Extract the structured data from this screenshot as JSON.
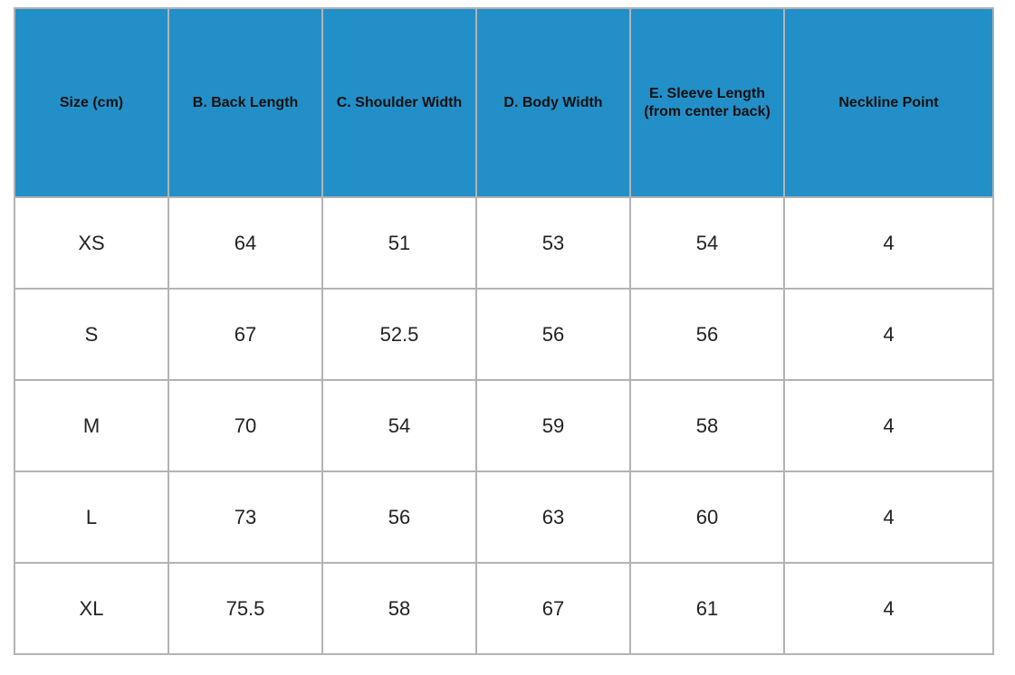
{
  "table": {
    "headers": [
      "Size (cm)",
      "B. Back Length",
      "C. Shoulder Width",
      "D. Body Width",
      "E. Sleeve Length (from center back)",
      "Neckline Point"
    ],
    "rows": [
      [
        "XS",
        "64",
        "51",
        "53",
        "54",
        "4"
      ],
      [
        "S",
        "67",
        "52.5",
        "56",
        "56",
        "4"
      ],
      [
        "M",
        "70",
        "54",
        "59",
        "58",
        "4"
      ],
      [
        "L",
        "73",
        "56",
        "63",
        "60",
        "4"
      ],
      [
        "XL",
        "75.5",
        "58",
        "67",
        "61",
        "4"
      ]
    ],
    "colors": {
      "header_background": "#238fc8",
      "border": "#b3b3b3"
    }
  }
}
